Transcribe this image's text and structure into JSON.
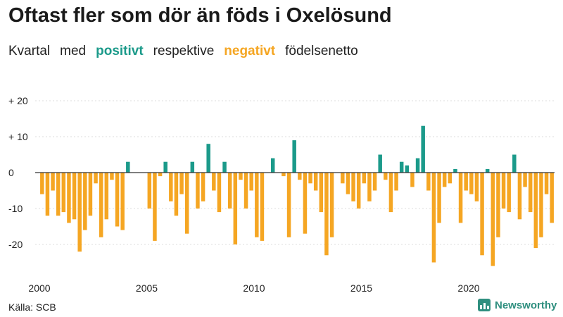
{
  "title": "Oftast fler som dör än föds i Oxelösund",
  "subtitle": {
    "part1": "Kvartal",
    "part2": "med",
    "positive_word": "positivt",
    "part3": "respektive",
    "negative_word": "negativt",
    "part4": "födelsenetto"
  },
  "source": "Källa: SCB",
  "brand": "Newsworthy",
  "colors": {
    "positive": "#1b9a8a",
    "negative": "#f5a623",
    "axis": "#333333",
    "grid": "#dddddd",
    "brand": "#2f8f7f"
  },
  "chart_data": {
    "type": "bar",
    "title": "Oftast fler som dör än föds i Oxelösund",
    "xlabel": "",
    "ylabel": "",
    "ylim": [
      -30,
      22
    ],
    "y_ticks": [
      20,
      10,
      0,
      -10,
      -20
    ],
    "y_tick_labels": [
      "+ 20",
      "+ 10",
      "0",
      "-10",
      "-20"
    ],
    "x_ticks": [
      "2000",
      "2005",
      "2010",
      "2015",
      "2020"
    ],
    "start_year": 2000,
    "categories": [
      "2000 Q1",
      "2000 Q2",
      "2000 Q3",
      "2000 Q4",
      "2001 Q1",
      "2001 Q2",
      "2001 Q3",
      "2001 Q4",
      "2002 Q1",
      "2002 Q2",
      "2002 Q3",
      "2002 Q4",
      "2003 Q1",
      "2003 Q2",
      "2003 Q3",
      "2003 Q4",
      "2004 Q1",
      "2004 Q2",
      "2004 Q3",
      "2004 Q4",
      "2005 Q1",
      "2005 Q2",
      "2005 Q3",
      "2005 Q4",
      "2006 Q1",
      "2006 Q2",
      "2006 Q3",
      "2006 Q4",
      "2007 Q1",
      "2007 Q2",
      "2007 Q3",
      "2007 Q4",
      "2008 Q1",
      "2008 Q2",
      "2008 Q3",
      "2008 Q4",
      "2009 Q1",
      "2009 Q2",
      "2009 Q3",
      "2009 Q4",
      "2010 Q1",
      "2010 Q2",
      "2010 Q3",
      "2010 Q4",
      "2011 Q1",
      "2011 Q2",
      "2011 Q3",
      "2011 Q4",
      "2012 Q1",
      "2012 Q2",
      "2012 Q3",
      "2012 Q4",
      "2013 Q1",
      "2013 Q2",
      "2013 Q3",
      "2013 Q4",
      "2014 Q1",
      "2014 Q2",
      "2014 Q3",
      "2014 Q4",
      "2015 Q1",
      "2015 Q2",
      "2015 Q3",
      "2015 Q4",
      "2016 Q1",
      "2016 Q2",
      "2016 Q3",
      "2016 Q4",
      "2017 Q1",
      "2017 Q2",
      "2017 Q3",
      "2017 Q4",
      "2018 Q1",
      "2018 Q2",
      "2018 Q3",
      "2018 Q4",
      "2019 Q1",
      "2019 Q2",
      "2019 Q3",
      "2019 Q4",
      "2020 Q1",
      "2020 Q2",
      "2020 Q3",
      "2020 Q4",
      "2021 Q1",
      "2021 Q2",
      "2021 Q3",
      "2021 Q4",
      "2022 Q1",
      "2022 Q2",
      "2022 Q3",
      "2022 Q4",
      "2023 Q1",
      "2023 Q2",
      "2023 Q3",
      "2023 Q4"
    ],
    "values": [
      -6,
      -12,
      -5,
      -12,
      -11,
      -14,
      -13,
      -22,
      -16,
      -12,
      -3,
      -18,
      -13,
      -2,
      -15,
      -16,
      3,
      0,
      0,
      0,
      -10,
      -19,
      -1,
      3,
      -8,
      -12,
      -6,
      -17,
      3,
      -10,
      -8,
      8,
      -5,
      -11,
      3,
      -10,
      -20,
      -2,
      -10,
      -5,
      -18,
      -19,
      0,
      4,
      0,
      -1,
      -18,
      9,
      -2,
      -17,
      -3,
      -5,
      -11,
      -23,
      -18,
      0,
      -3,
      -6,
      -8,
      -10,
      -3,
      -8,
      -5,
      5,
      -2,
      -11,
      -5,
      3,
      2,
      -4,
      4,
      13,
      -5,
      -25,
      -14,
      -4,
      -3,
      1,
      -14,
      -5,
      -6,
      -8,
      -23,
      1,
      -26,
      -18,
      -10,
      -11,
      5,
      -13,
      -4,
      -11,
      -21,
      -18,
      -6,
      -14
    ]
  }
}
